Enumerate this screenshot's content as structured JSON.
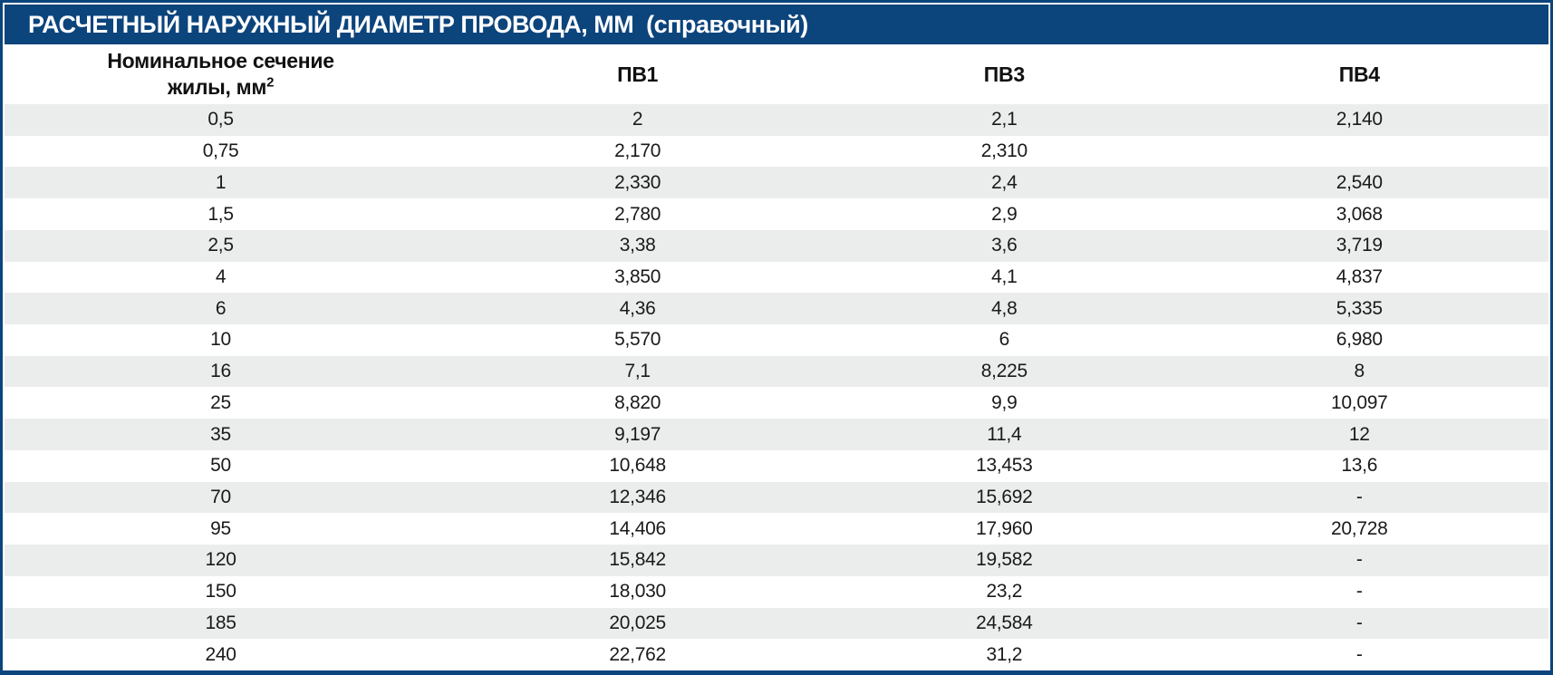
{
  "title": "РАСЧЕТНЫЙ НАРУЖНЫЙ ДИАМЕТР ПРОВОДА, ММ  (справочный)",
  "colors": {
    "accent_navy": "#0c447c",
    "stripe_gray": "#ebeded",
    "title_text": "#ffffff",
    "body_text": "#1a1a1a"
  },
  "table": {
    "section_header": {
      "line1": "Номинальное сечение",
      "line2": "жилы, мм",
      "sup": "2"
    },
    "columns": [
      "ПВ1",
      "ПВ3",
      "ПВ4"
    ],
    "rows": [
      [
        "0,5",
        "2",
        "2,1",
        "2,140"
      ],
      [
        "0,75",
        "2,170",
        "2,310",
        ""
      ],
      [
        "1",
        "2,330",
        "2,4",
        "2,540"
      ],
      [
        "1,5",
        "2,780",
        "2,9",
        "3,068"
      ],
      [
        "2,5",
        "3,38",
        "3,6",
        "3,719"
      ],
      [
        "4",
        "3,850",
        "4,1",
        "4,837"
      ],
      [
        "6",
        "4,36",
        "4,8",
        "5,335"
      ],
      [
        "10",
        "5,570",
        "6",
        "6,980"
      ],
      [
        "16",
        "7,1",
        "8,225",
        "8"
      ],
      [
        "25",
        "8,820",
        "9,9",
        "10,097"
      ],
      [
        "35",
        "9,197",
        "11,4",
        "12"
      ],
      [
        "50",
        "10,648",
        "13,453",
        "13,6"
      ],
      [
        "70",
        "12,346",
        "15,692",
        "-"
      ],
      [
        "95",
        "14,406",
        "17,960",
        "20,728"
      ],
      [
        "120",
        "15,842",
        "19,582",
        "-"
      ],
      [
        "150",
        "18,030",
        "23,2",
        "-"
      ],
      [
        "185",
        "20,025",
        "24,584",
        "-"
      ],
      [
        "240",
        "22,762",
        "31,2",
        "-"
      ]
    ]
  }
}
